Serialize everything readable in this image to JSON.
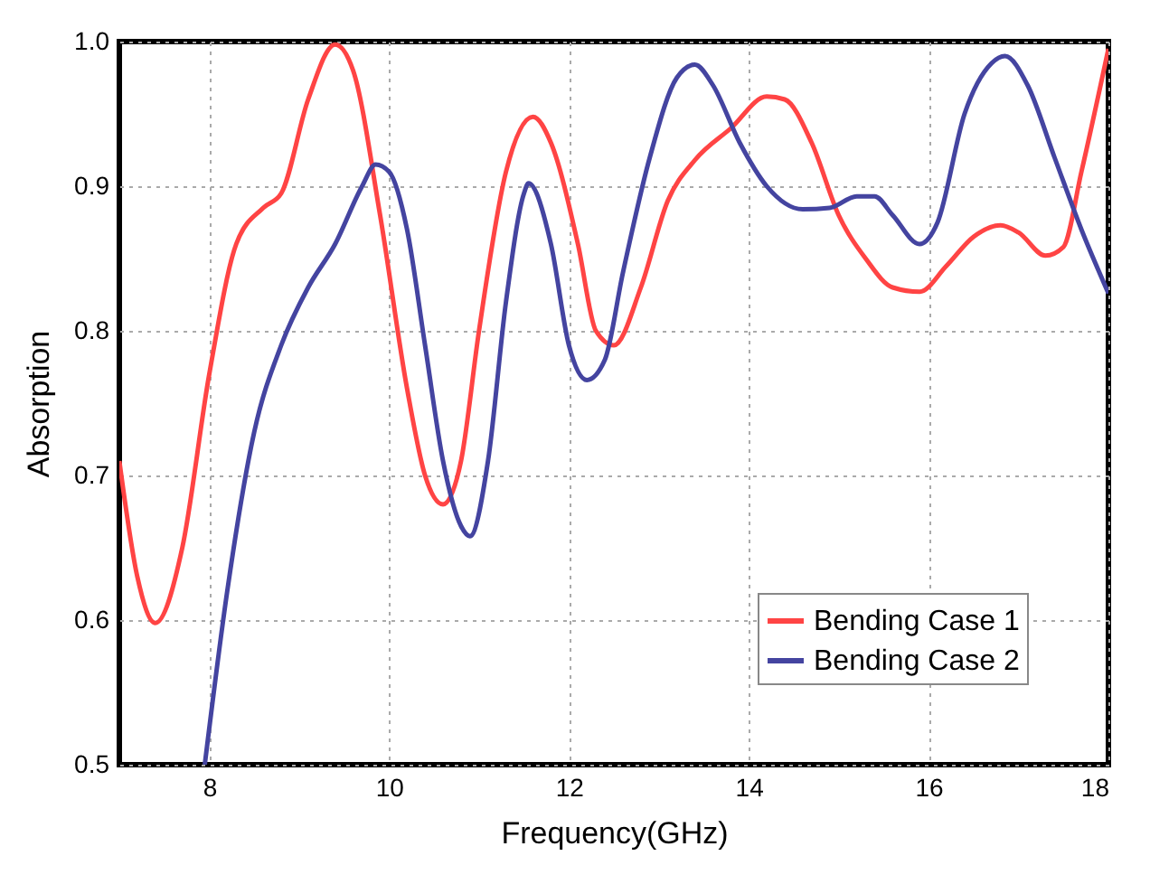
{
  "chart_data": {
    "type": "line",
    "xlabel": "Frequency(GHz)",
    "ylabel": "Absorption",
    "xlim": [
      7,
      18
    ],
    "ylim": [
      0.5,
      1.0
    ],
    "xticks": [
      8,
      10,
      12,
      14,
      16,
      18
    ],
    "yticks": [
      0.5,
      0.6,
      0.7,
      0.8,
      0.9,
      {
        "value": 1,
        "label": "1.0"
      }
    ],
    "grid": true,
    "legend": "bottom right",
    "line_style": "solid",
    "marker": "none",
    "series": [
      {
        "name": "Bending Case 1",
        "color": "#ff4444",
        "x": [
          7.0,
          7.2,
          7.4,
          7.7,
          8.0,
          8.3,
          8.6,
          8.8,
          9.1,
          9.4,
          9.6,
          9.9,
          10.2,
          10.4,
          10.6,
          10.8,
          11.0,
          11.3,
          11.6,
          11.8,
          12.1,
          12.3,
          12.5,
          12.8,
          13.1,
          13.4,
          13.8,
          14.2,
          14.4,
          14.7,
          15.0,
          15.3,
          15.6,
          15.9,
          16.2,
          16.5,
          16.8,
          17.0,
          17.3,
          17.5,
          17.7,
          18.0
        ],
        "values": [
          0.71,
          0.63,
          0.598,
          0.65,
          0.77,
          0.86,
          0.885,
          0.895,
          0.96,
          0.998,
          0.98,
          0.88,
          0.76,
          0.7,
          0.68,
          0.71,
          0.8,
          0.91,
          0.948,
          0.93,
          0.86,
          0.8,
          0.79,
          0.83,
          0.89,
          0.918,
          0.94,
          0.962,
          0.96,
          0.93,
          0.88,
          0.85,
          0.83,
          0.827,
          0.845,
          0.865,
          0.873,
          0.868,
          0.852,
          0.858,
          0.91,
          0.995
        ]
      },
      {
        "name": "Bending Case 2",
        "color": "#4444a0",
        "x": [
          7.95,
          8.2,
          8.5,
          8.8,
          9.1,
          9.4,
          9.7,
          9.85,
          10.0,
          10.2,
          10.4,
          10.6,
          10.8,
          10.9,
          11.1,
          11.3,
          11.5,
          11.55,
          11.8,
          12.0,
          12.2,
          12.4,
          12.6,
          12.9,
          13.2,
          13.4,
          13.6,
          13.9,
          14.2,
          14.6,
          14.9,
          15.2,
          15.4,
          15.6,
          15.9,
          16.1,
          16.4,
          16.7,
          16.85,
          17.1,
          17.4,
          17.7,
          18.0
        ],
        "values": [
          0.5,
          0.62,
          0.73,
          0.79,
          0.83,
          0.86,
          0.9,
          0.915,
          0.91,
          0.87,
          0.79,
          0.71,
          0.665,
          0.658,
          0.71,
          0.82,
          0.895,
          0.902,
          0.86,
          0.79,
          0.766,
          0.78,
          0.84,
          0.92,
          0.975,
          0.984,
          0.97,
          0.93,
          0.9,
          0.884,
          0.885,
          0.893,
          0.893,
          0.88,
          0.86,
          0.875,
          0.95,
          0.985,
          0.99,
          0.97,
          0.92,
          0.87,
          0.826
        ]
      }
    ]
  }
}
